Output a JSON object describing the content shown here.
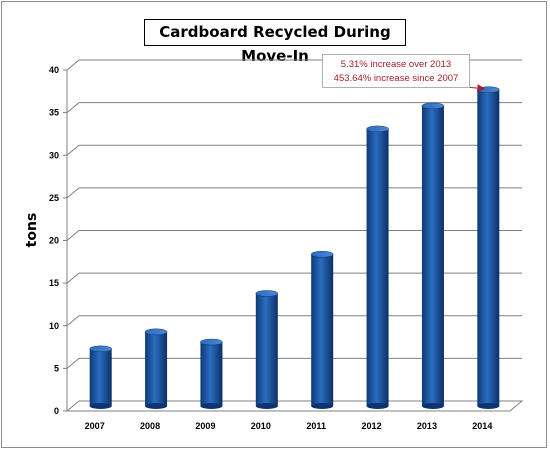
{
  "chart_data": {
    "type": "bar",
    "title": "Cardboard Recycled During Move-In",
    "ylabel": "tons",
    "xlabel": "",
    "categories": [
      "2007",
      "2008",
      "2009",
      "2010",
      "2011",
      "2012",
      "2013",
      "2014"
    ],
    "values": [
      6.7,
      8.7,
      7.5,
      13.2,
      17.8,
      32.5,
      35.2,
      37.1
    ],
    "ylim": [
      0,
      40
    ],
    "yticks": [
      0,
      5,
      10,
      15,
      20,
      25,
      30,
      35,
      40
    ],
    "grid": true,
    "bar_color": "#1f5aa6",
    "annotation": {
      "line1": "5.31% increase over 2013",
      "line2": "453.64% increase since 2007",
      "color": "#a3242a",
      "target_category": "2014"
    }
  }
}
